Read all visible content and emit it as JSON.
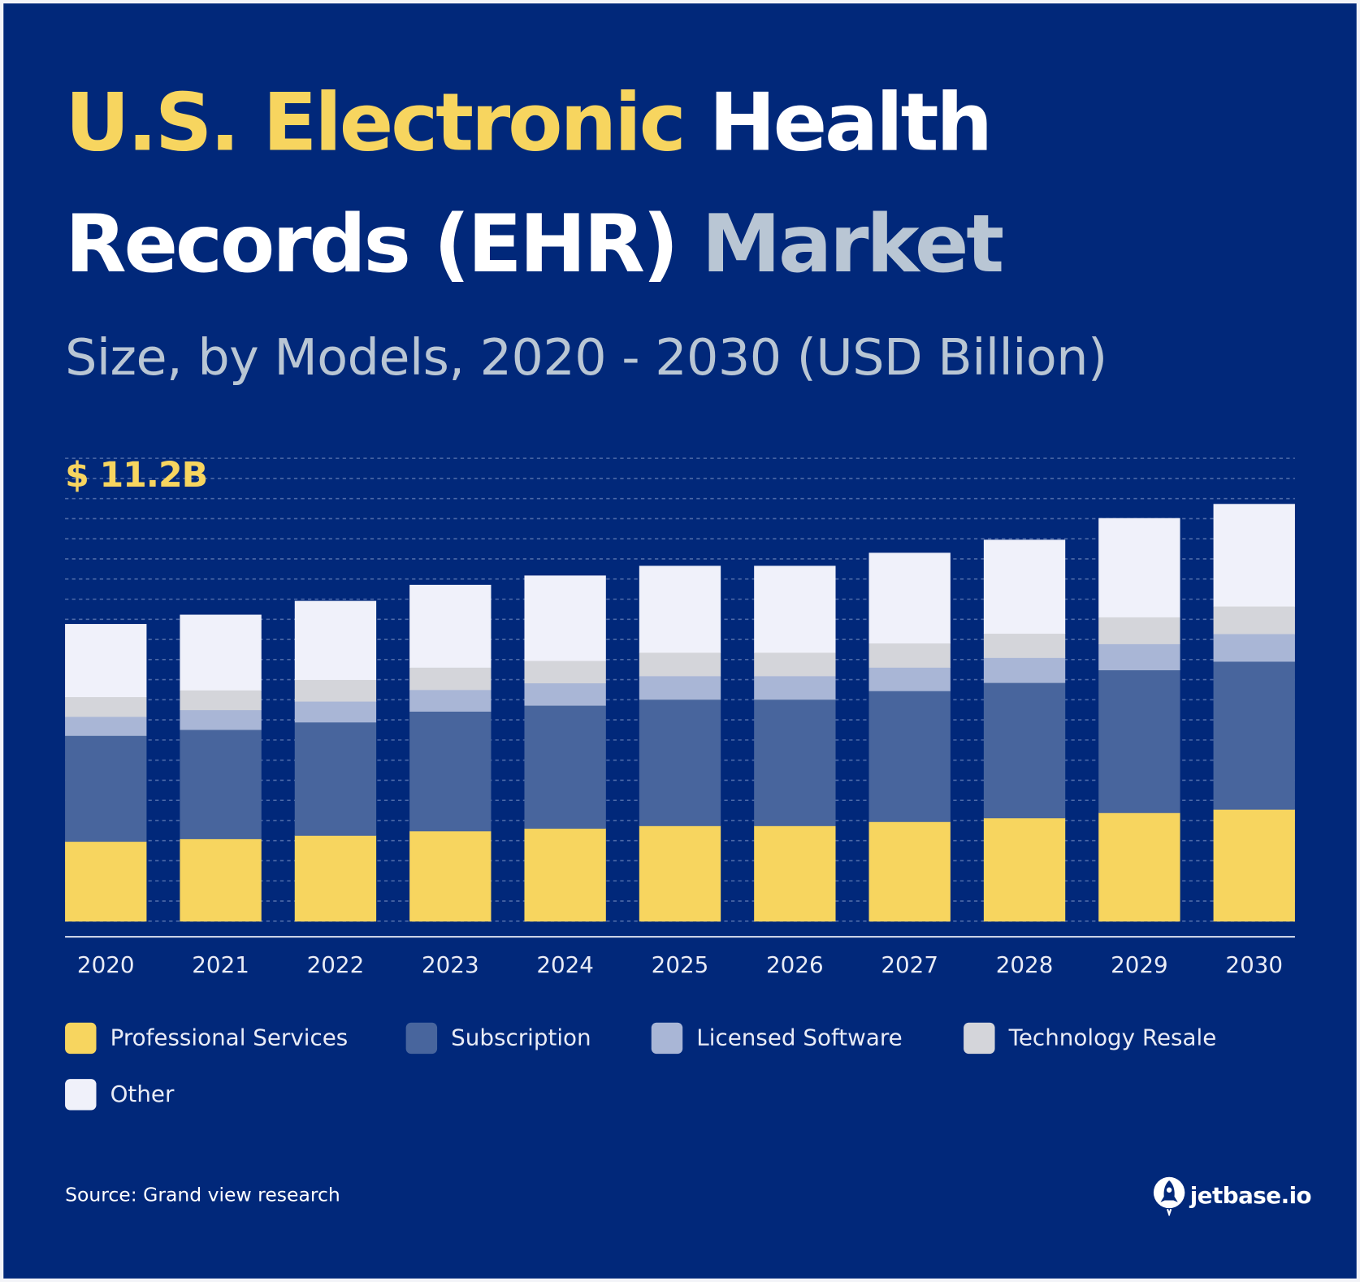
{
  "title": {
    "part1": "U.S. Electronic",
    "part2": "Health",
    "part3": "Records (EHR)",
    "part4": "Market"
  },
  "subtitle": "Size, by Models, 2020 - 2030 (USD Billion)",
  "peak_label": "$ 11.2B",
  "source": "Source: Grand view research",
  "logo": "jetbase.io",
  "colors": {
    "background": "#01287a",
    "title_yellow": "#f7d55f",
    "title_gray": "#b9c6d4"
  },
  "chart_data": {
    "type": "bar",
    "stacked": true,
    "grid": true,
    "legend_position": "bottom",
    "ylim": [
      0,
      12.4
    ],
    "categories": [
      "2020",
      "2021",
      "2022",
      "2023",
      "2024",
      "2025",
      "2026",
      "2027",
      "2028",
      "2029",
      "2030"
    ],
    "series": [
      {
        "name": "Professional Services",
        "color": "#f7d55f",
        "values": [
          2.14,
          2.21,
          2.3,
          2.42,
          2.49,
          2.56,
          2.56,
          2.67,
          2.77,
          2.91,
          3.0
        ]
      },
      {
        "name": "Subscription",
        "color": "#48659d",
        "values": [
          2.84,
          2.93,
          3.04,
          3.21,
          3.3,
          3.39,
          3.39,
          3.51,
          3.63,
          3.83,
          3.97
        ]
      },
      {
        "name": "Licensed Software",
        "color": "#a9b6d6",
        "values": [
          0.51,
          0.53,
          0.56,
          0.58,
          0.6,
          0.63,
          0.63,
          0.63,
          0.67,
          0.7,
          0.74
        ]
      },
      {
        "name": "Technology Resale",
        "color": "#d4d5da",
        "values": [
          0.53,
          0.53,
          0.58,
          0.6,
          0.6,
          0.63,
          0.63,
          0.65,
          0.65,
          0.72,
          0.74
        ]
      },
      {
        "name": "Other",
        "color": "#f0f1fa",
        "values": [
          1.95,
          2.02,
          2.11,
          2.21,
          2.28,
          2.32,
          2.32,
          2.42,
          2.51,
          2.65,
          2.74
        ]
      }
    ]
  }
}
